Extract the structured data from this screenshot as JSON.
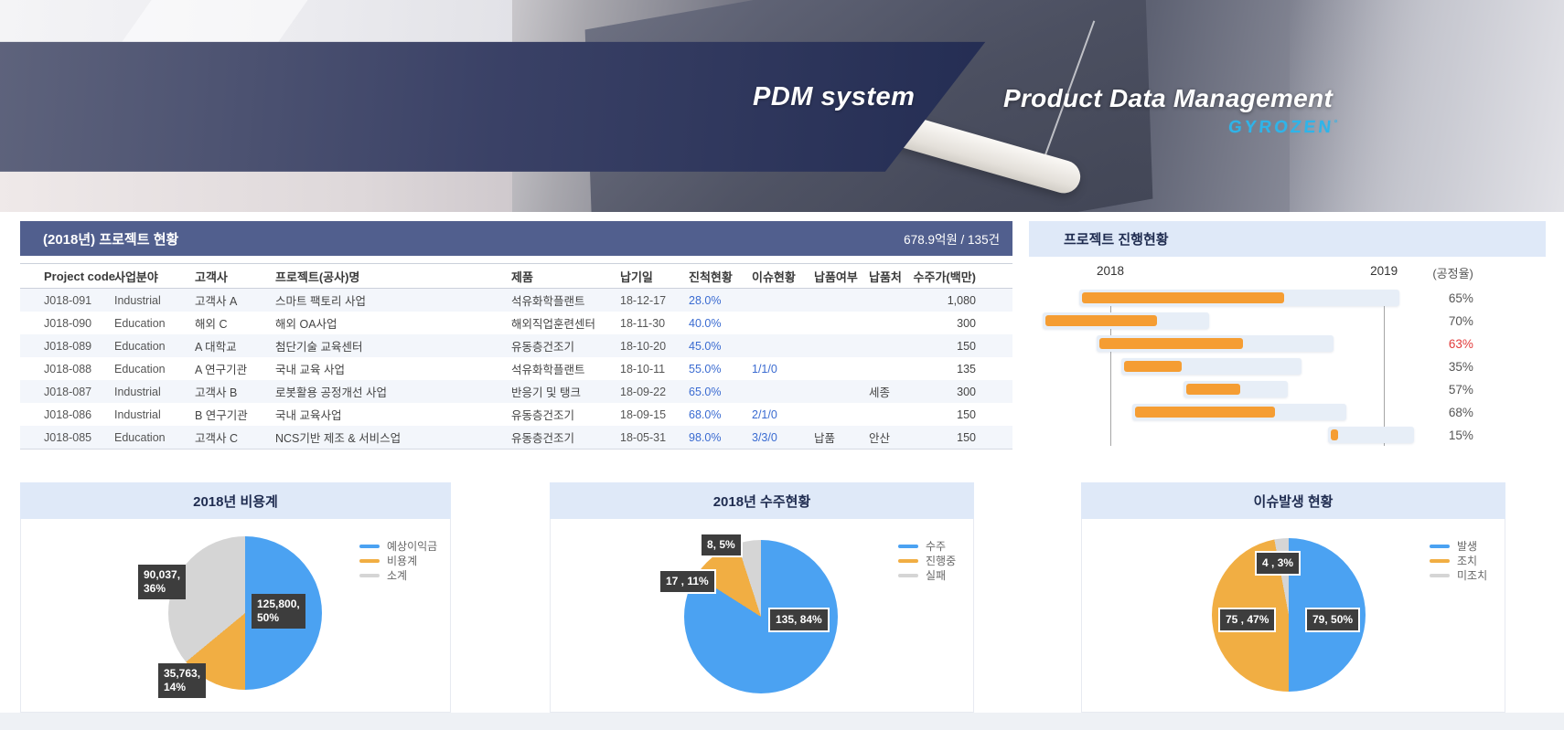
{
  "banner": {
    "title": "PDM system",
    "subtitle": "Product Data Management",
    "brand": "GYROZEN",
    "brand_mark": "°"
  },
  "colors": {
    "accent_blue": "#3A6BD1",
    "alert_red": "#E23B3B",
    "table_header_navy": "#515F8E",
    "panel_header_blue": "#DFE9F8",
    "bar_orange": "#F59D33",
    "bar_track": "#E7EEF7",
    "pie_blue": "#4BA2F2",
    "pie_orange": "#F1AE43",
    "pie_gray": "#D5D5D5",
    "brand_cyan": "#2FB4E9",
    "label_box": "#3D3D3D"
  },
  "projects_panel": {
    "title": "(2018년) 프로젝트 현황",
    "summary": "678.9억원 / 135건",
    "columns": [
      "Project code",
      "사업분야",
      "고객사",
      "프로젝트(공사)명",
      "제품",
      "납기일",
      "진척현황",
      "이슈현황",
      "납품여부",
      "납품처",
      "수주가(백만)"
    ],
    "rows": [
      [
        "J018-091",
        "Industrial",
        "고객사 A",
        "스마트 팩토리 사업",
        "석유화학플랜트",
        "18-12-17",
        "28.0%",
        "",
        "",
        "",
        "1,080"
      ],
      [
        "J018-090",
        "Education",
        "해외 C",
        "해외 OA사업",
        "해외직업훈련센터",
        "18-11-30",
        "40.0%",
        "",
        "",
        "",
        "300"
      ],
      [
        "J018-089",
        "Education",
        "A 대학교",
        "첨단기술 교육센터",
        "유동층건조기",
        "18-10-20",
        "45.0%",
        "",
        "",
        "",
        "150"
      ],
      [
        "J018-088",
        "Education",
        "A 연구기관",
        "국내 교육 사업",
        "석유화학플랜트",
        "18-10-11",
        "55.0%",
        "1/1/0",
        "",
        "",
        "135"
      ],
      [
        "J018-087",
        "Industrial",
        "고객사 B",
        "로봇활용 공정개선 사업",
        "반응기 및 탱크",
        "18-09-22",
        "65.0%",
        "",
        "",
        "세종",
        "300"
      ],
      [
        "J018-086",
        "Industrial",
        "B 연구기관",
        "국내 교육사업",
        "유동층건조기",
        "18-09-15",
        "68.0%",
        "2/1/0",
        "",
        "",
        "150"
      ],
      [
        "J018-085",
        "Education",
        "고객사 C",
        "NCS기반 제조 & 서비스업",
        "유동층건조기",
        "18-05-31",
        "98.0%",
        "3/3/0",
        "납품",
        "안산",
        "150"
      ]
    ]
  },
  "chart_data": [
    {
      "type": "bar",
      "title": "프로젝트 진행현황",
      "axis": {
        "left_year": "2018",
        "right_year": "2019",
        "unit_label": "(공정율)",
        "tick_2018_pct": 15.75,
        "tick_2019_pct": 68.7
      },
      "rows": [
        {
          "progress_label": "65%",
          "progress_pct": 65,
          "start_pct": 9.7,
          "width_pct": 61.9,
          "alert": false
        },
        {
          "progress_label": "70%",
          "progress_pct": 70,
          "start_pct": 2.7,
          "width_pct": 32.2,
          "alert": false
        },
        {
          "progress_label": "63%",
          "progress_pct": 63,
          "start_pct": 13.1,
          "width_pct": 45.8,
          "alert": true
        },
        {
          "progress_label": "35%",
          "progress_pct": 35,
          "start_pct": 17.9,
          "width_pct": 34.9,
          "alert": false
        },
        {
          "progress_label": "57%",
          "progress_pct": 57,
          "start_pct": 29.9,
          "width_pct": 20.2,
          "alert": false
        },
        {
          "progress_label": "68%",
          "progress_pct": 68,
          "start_pct": 20.0,
          "width_pct": 41.4,
          "alert": false
        },
        {
          "progress_label": "15%",
          "progress_pct": 15,
          "start_pct": 57.9,
          "width_pct": 16.6,
          "alert": false
        }
      ]
    },
    {
      "type": "pie",
      "title": "2018년 비용계",
      "legend_position": "right",
      "slices": [
        {
          "name": "예상이익금",
          "value": 125800,
          "pct": 50,
          "label": "125,800,\n50%",
          "color": "#4BA2F2"
        },
        {
          "name": "비용계",
          "value": 35763,
          "pct": 14,
          "label": "35,763,\n14%",
          "color": "#F1AE43"
        },
        {
          "name": "소계",
          "value": 90037,
          "pct": 36,
          "label": "90,037,\n36%",
          "color": "#D5D5D5"
        }
      ]
    },
    {
      "type": "pie",
      "title": "2018년 수주현황",
      "legend_position": "right",
      "slices": [
        {
          "name": "수주",
          "value": 135,
          "pct": 84,
          "label": "135, 84%",
          "color": "#4BA2F2"
        },
        {
          "name": "진행중",
          "value": 17,
          "pct": 11,
          "label": "17 , 11%",
          "color": "#F1AE43"
        },
        {
          "name": "실패",
          "value": 8,
          "pct": 5,
          "label": "8, 5%",
          "color": "#D5D5D5"
        }
      ]
    },
    {
      "type": "pie",
      "title": "이슈발생 현황",
      "legend_position": "right",
      "slices": [
        {
          "name": "발생",
          "value": 79,
          "pct": 50,
          "label": "79, 50%",
          "color": "#4BA2F2"
        },
        {
          "name": "조치",
          "value": 75,
          "pct": 47,
          "label": "75 , 47%",
          "color": "#F1AE43"
        },
        {
          "name": "미조치",
          "value": 4,
          "pct": 3,
          "label": "4 , 3%",
          "color": "#D5D5D5"
        }
      ]
    }
  ]
}
